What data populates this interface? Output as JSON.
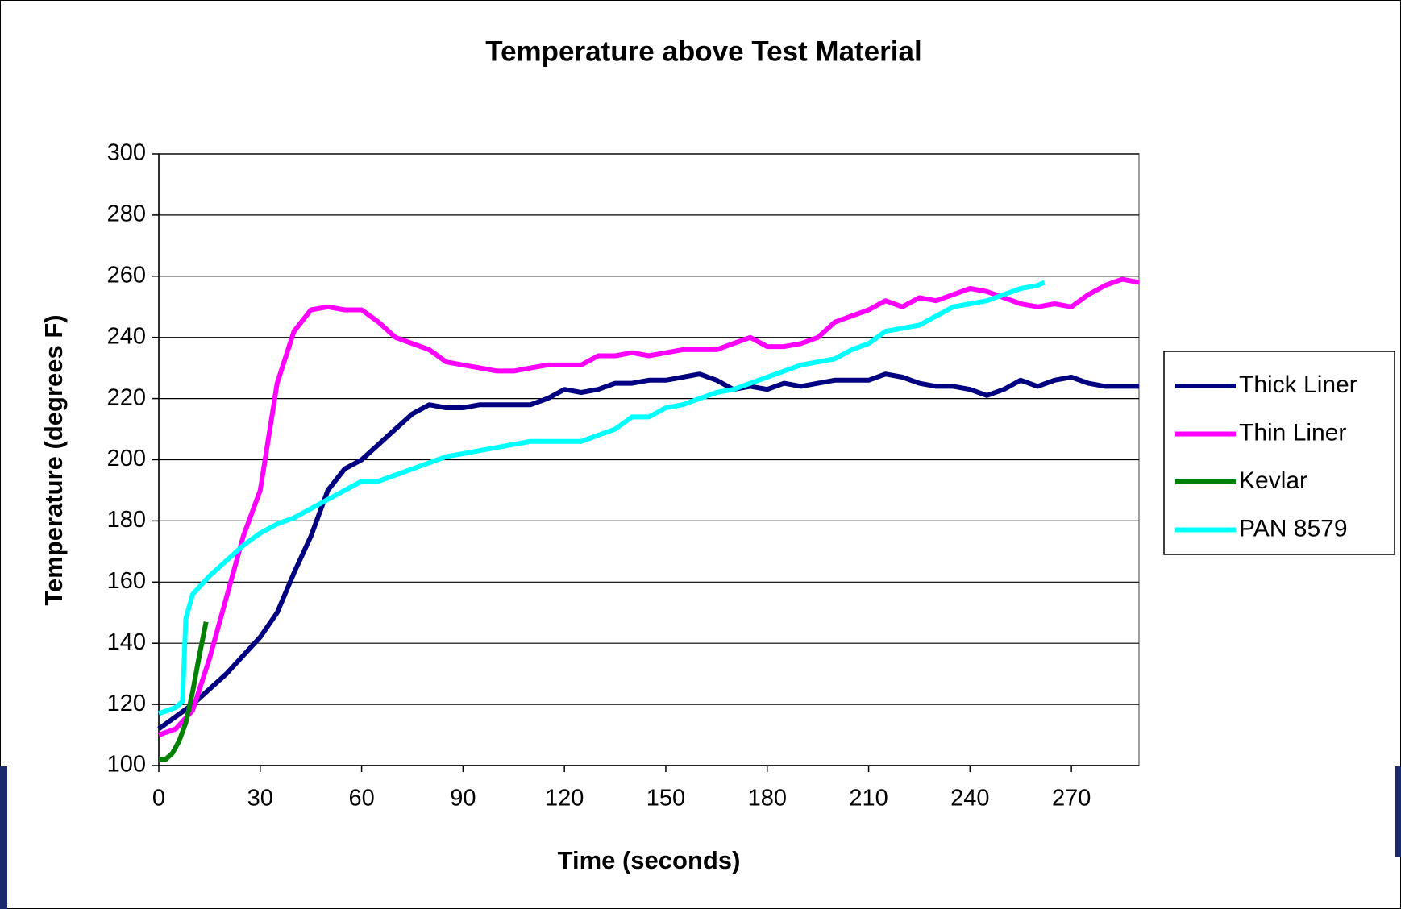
{
  "chart_data": {
    "type": "line",
    "title": "Temperature above Test Material",
    "x_label": "Time (seconds)",
    "y_label": "Temperature (degrees F)",
    "xlim": [
      0,
      290
    ],
    "xticks": [
      0,
      30,
      60,
      90,
      120,
      150,
      180,
      210,
      240,
      270
    ],
    "ylim": [
      100,
      300
    ],
    "yticks": [
      100,
      120,
      140,
      160,
      180,
      200,
      220,
      240,
      260,
      280,
      300
    ],
    "grid": true,
    "legend": "right",
    "series": [
      {
        "name": "Thick Liner",
        "color": "#000080",
        "x": [
          0,
          5,
          10,
          15,
          20,
          25,
          30,
          35,
          40,
          45,
          50,
          55,
          60,
          65,
          70,
          75,
          80,
          85,
          90,
          95,
          100,
          105,
          110,
          115,
          120,
          125,
          130,
          135,
          140,
          145,
          150,
          155,
          160,
          165,
          170,
          175,
          180,
          185,
          190,
          195,
          200,
          205,
          210,
          215,
          220,
          225,
          230,
          235,
          240,
          245,
          250,
          255,
          260,
          265,
          270,
          275,
          280,
          285,
          290
        ],
        "values": [
          112,
          116,
          120,
          125,
          130,
          136,
          142,
          150,
          163,
          175,
          190,
          197,
          200,
          205,
          210,
          215,
          218,
          217,
          217,
          218,
          218,
          218,
          218,
          220,
          223,
          222,
          223,
          225,
          225,
          226,
          226,
          227,
          228,
          226,
          223,
          224,
          223,
          225,
          224,
          225,
          226,
          226,
          226,
          228,
          227,
          225,
          224,
          224,
          223,
          221,
          223,
          226,
          224,
          226,
          227,
          225,
          224,
          224,
          224
        ]
      },
      {
        "name": "Thin Liner",
        "color": "#ff00ff",
        "x": [
          0,
          5,
          10,
          15,
          20,
          25,
          30,
          35,
          40,
          45,
          50,
          55,
          60,
          65,
          70,
          75,
          80,
          85,
          90,
          95,
          100,
          105,
          110,
          115,
          120,
          125,
          130,
          135,
          140,
          145,
          150,
          155,
          160,
          165,
          170,
          175,
          180,
          185,
          190,
          195,
          200,
          205,
          210,
          215,
          220,
          225,
          230,
          235,
          240,
          245,
          250,
          255,
          260,
          265,
          270,
          275,
          280,
          285,
          290
        ],
        "values": [
          110,
          112,
          118,
          135,
          155,
          175,
          190,
          225,
          242,
          249,
          250,
          249,
          249,
          245,
          240,
          238,
          236,
          232,
          231,
          230,
          229,
          229,
          230,
          231,
          231,
          231,
          234,
          234,
          235,
          234,
          235,
          236,
          236,
          236,
          238,
          240,
          237,
          237,
          238,
          240,
          245,
          247,
          249,
          252,
          250,
          253,
          252,
          254,
          256,
          255,
          253,
          251,
          250,
          251,
          250,
          254,
          257,
          259,
          258
        ]
      },
      {
        "name": "Kevlar",
        "color": "#008000",
        "x": [
          0,
          2,
          4,
          6,
          8,
          10,
          12,
          14
        ],
        "values": [
          102,
          102,
          104,
          108,
          114,
          124,
          136,
          147
        ]
      },
      {
        "name": "PAN 8579",
        "color": "#00ffff",
        "x": [
          0,
          5,
          7,
          8,
          10,
          15,
          20,
          25,
          30,
          35,
          40,
          45,
          50,
          55,
          60,
          65,
          70,
          75,
          80,
          85,
          90,
          95,
          100,
          105,
          110,
          115,
          120,
          125,
          130,
          135,
          140,
          145,
          150,
          155,
          160,
          165,
          170,
          175,
          180,
          185,
          190,
          195,
          200,
          205,
          210,
          215,
          220,
          225,
          230,
          235,
          240,
          245,
          250,
          255,
          260,
          262
        ],
        "values": [
          117,
          119,
          121,
          148,
          156,
          162,
          167,
          172,
          176,
          179,
          181,
          184,
          187,
          190,
          193,
          193,
          195,
          197,
          199,
          201,
          202,
          203,
          204,
          205,
          206,
          206,
          206,
          206,
          208,
          210,
          214,
          214,
          217,
          218,
          220,
          222,
          223,
          225,
          227,
          229,
          231,
          232,
          233,
          236,
          238,
          242,
          243,
          244,
          247,
          250,
          251,
          252,
          254,
          256,
          257,
          258
        ]
      }
    ]
  }
}
